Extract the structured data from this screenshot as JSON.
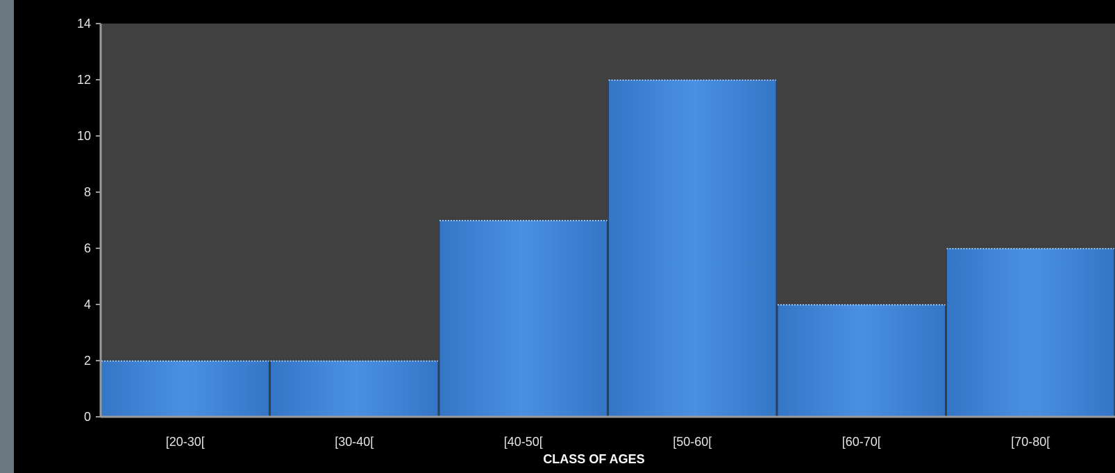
{
  "chart_data": {
    "type": "bar",
    "categories": [
      "[20-30[",
      "[30-40[",
      "[40-50[",
      "[50-60[",
      "[60-70[",
      "[70-80["
    ],
    "values": [
      2,
      2,
      7,
      12,
      4,
      6
    ],
    "xlabel": "CLASS OF AGES",
    "ylabel": "",
    "ylim": [
      0,
      14
    ],
    "yticks": [
      0,
      2,
      4,
      6,
      8,
      10,
      12,
      14
    ],
    "grid": false,
    "bar_color": "#3f86d8",
    "plot_background": "#404040",
    "page_background": "#000000"
  }
}
